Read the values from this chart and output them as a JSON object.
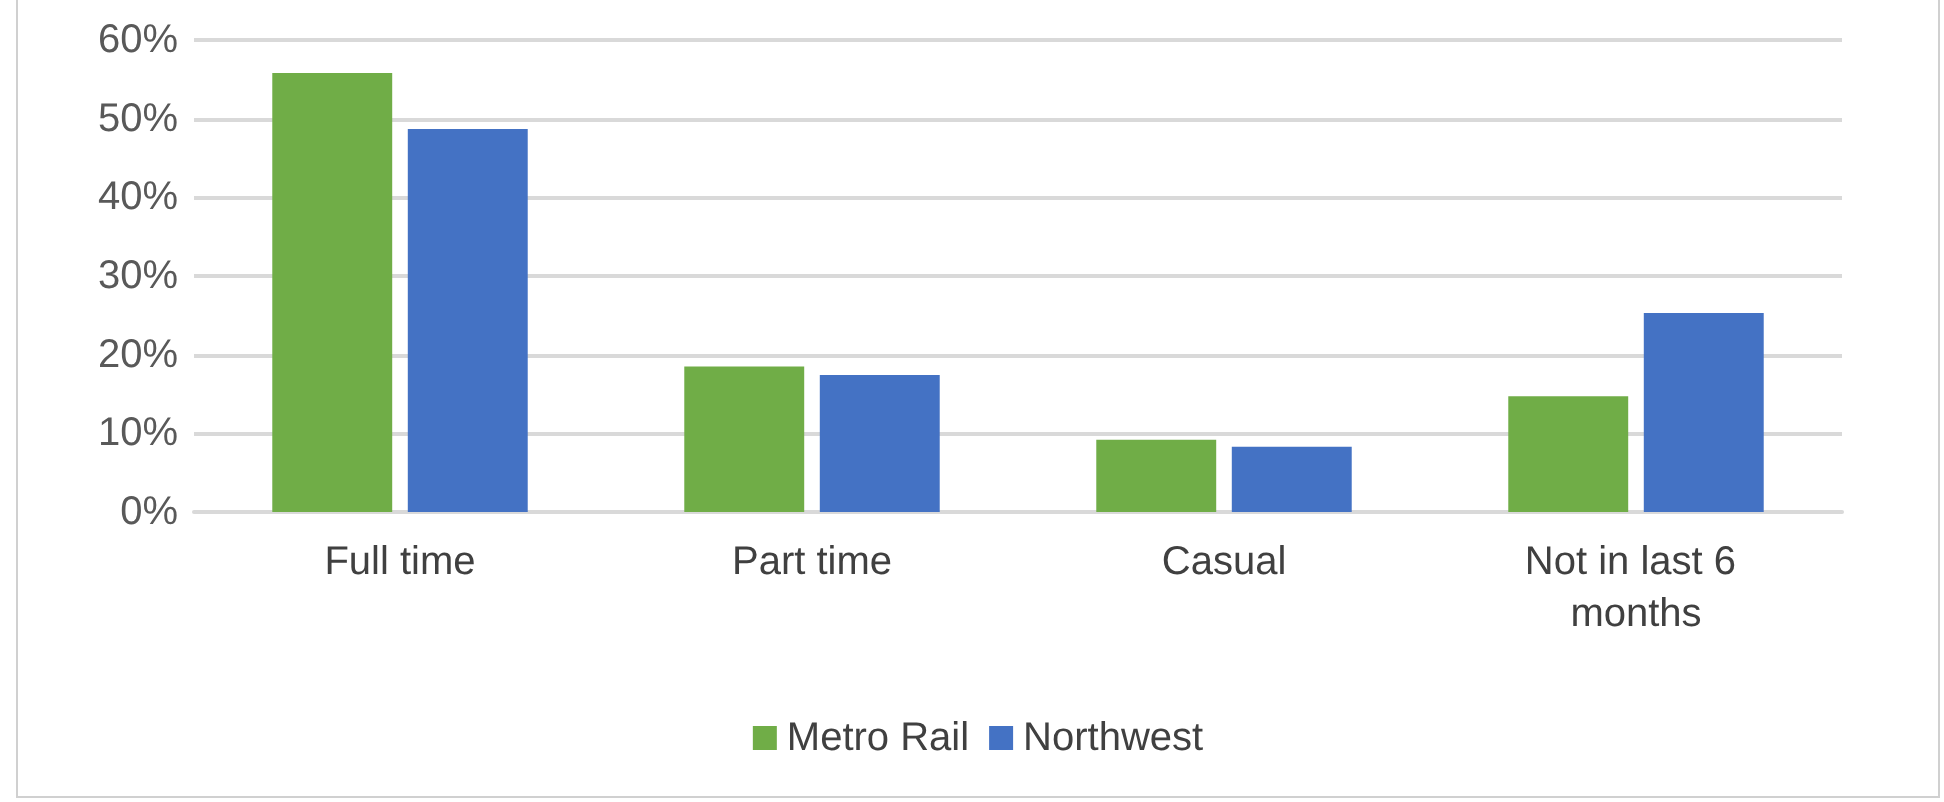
{
  "chart_data": {
    "type": "bar",
    "categories": [
      "Full time",
      "Part time",
      "Casual",
      "Not in last 6 months"
    ],
    "series": [
      {
        "name": "Metro Rail",
        "color": "#70ad47",
        "values": [
          55.8,
          18.5,
          9.2,
          14.7
        ]
      },
      {
        "name": "Northwest",
        "color": "#4472c4",
        "values": [
          48.7,
          17.4,
          8.3,
          25.3
        ]
      }
    ],
    "ylim": [
      0,
      60
    ],
    "yticks": [
      {
        "value": 0,
        "label": "0%"
      },
      {
        "value": 10,
        "label": "10%"
      },
      {
        "value": 20,
        "label": "20%"
      },
      {
        "value": 30,
        "label": "30%"
      },
      {
        "value": 40,
        "label": "40%"
      },
      {
        "value": 50,
        "label": "50%"
      },
      {
        "value": 60,
        "label": "60%"
      }
    ],
    "grid": "y",
    "legend": "bottom"
  }
}
